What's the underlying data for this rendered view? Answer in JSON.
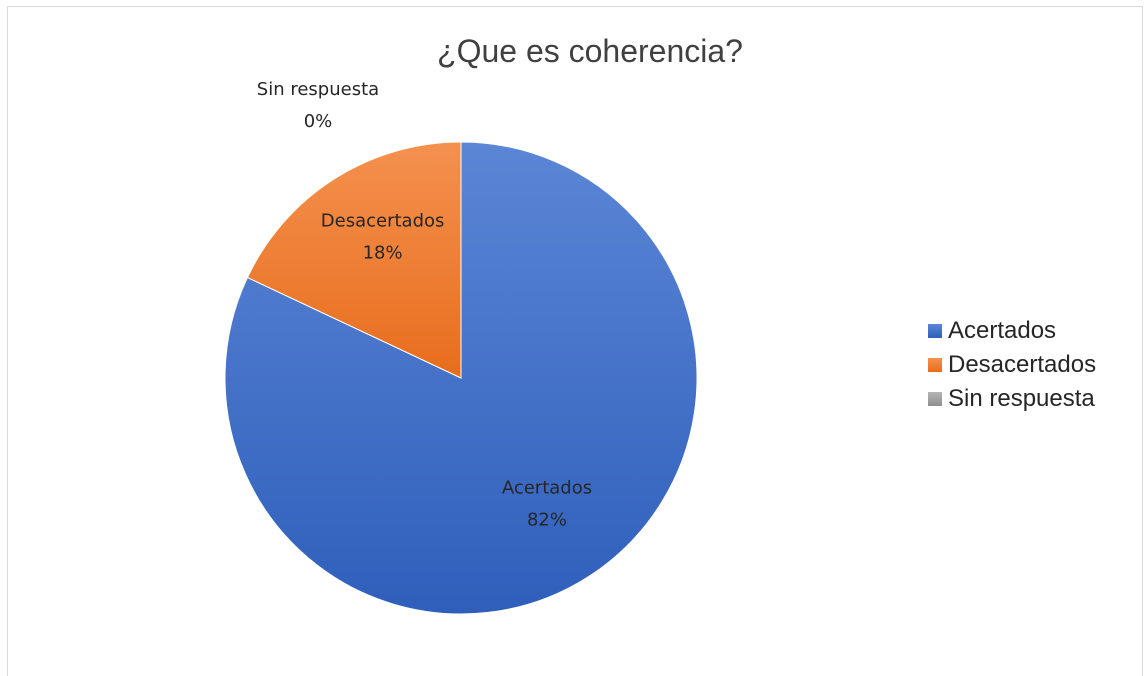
{
  "chart_data": {
    "type": "pie",
    "title": "¿Que es coherencia?",
    "categories": [
      "Acertados",
      "Desacertados",
      "Sin respuesta"
    ],
    "values": [
      82,
      18,
      0
    ],
    "labels": [
      {
        "name": "Acertados",
        "percent": "82%"
      },
      {
        "name": "Desacertados",
        "percent": "18%"
      },
      {
        "name": "Sin respuesta",
        "percent": "0%"
      }
    ],
    "colors": [
      "#4472c4",
      "#ed7d31",
      "#a5a5a5"
    ],
    "legend_position": "right",
    "legend": [
      "Acertados",
      "Desacertados",
      "Sin respuesta"
    ]
  }
}
